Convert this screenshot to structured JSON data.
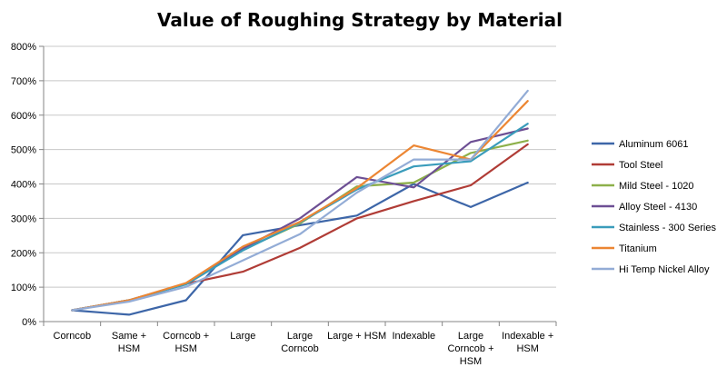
{
  "chart_data": {
    "type": "line",
    "title": "Value of Roughing Strategy by Material",
    "xlabel": "",
    "ylabel": "",
    "ylim": [
      0,
      800
    ],
    "y_ticks": [
      "0%",
      "100%",
      "200%",
      "300%",
      "400%",
      "500%",
      "600%",
      "700%",
      "800%"
    ],
    "y_unit": "%",
    "grid": "horizontal",
    "legend_position": "right",
    "categories": [
      "Corncob",
      "Same + HSM",
      "Corncob + HSM",
      "Large",
      "Large Corncob",
      "Large + HSM",
      "Indexable",
      "Large Corncob + HSM",
      "Indexable + HSM"
    ],
    "category_lines": [
      [
        "Corncob"
      ],
      [
        "Same +",
        "HSM"
      ],
      [
        "Corncob +",
        "HSM"
      ],
      [
        "Large"
      ],
      [
        "Large",
        "Corncob"
      ],
      [
        "Large + HSM"
      ],
      [
        "Indexable"
      ],
      [
        "Large",
        "Corncob +",
        "HSM"
      ],
      [
        "Indexable +",
        "HSM"
      ]
    ],
    "series": [
      {
        "name": "Aluminum 6061",
        "color": "#3d66a8",
        "values": [
          33,
          20,
          62,
          251,
          280,
          308,
          400,
          333,
          404
        ]
      },
      {
        "name": "Tool Steel",
        "color": "#b03c36",
        "values": [
          33,
          62,
          110,
          145,
          214,
          300,
          350,
          396,
          515
        ]
      },
      {
        "name": "Mild Steel - 1020",
        "color": "#8db04a",
        "values": [
          33,
          62,
          110,
          209,
          285,
          393,
          404,
          490,
          526
        ]
      },
      {
        "name": "Alloy Steel - 4130",
        "color": "#6d4f94",
        "values": [
          33,
          62,
          110,
          212,
          300,
          420,
          390,
          522,
          561
        ]
      },
      {
        "name": "Stainless - 300 Series",
        "color": "#3a9cbb",
        "values": [
          33,
          62,
          108,
          207,
          288,
          384,
          451,
          466,
          575
        ]
      },
      {
        "name": "Titanium",
        "color": "#ec8633",
        "values": [
          33,
          62,
          112,
          218,
          290,
          388,
          512,
          471,
          641
        ]
      },
      {
        "name": "Hi Temp Nickel Alloy",
        "color": "#93acd6",
        "values": [
          33,
          58,
          101,
          178,
          254,
          375,
          471,
          471,
          671
        ]
      }
    ]
  }
}
